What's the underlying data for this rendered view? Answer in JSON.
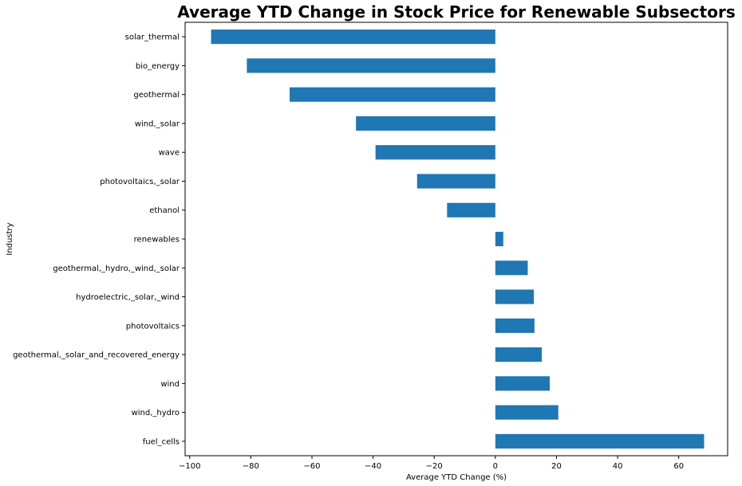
{
  "chart_data": {
    "type": "bar",
    "orientation": "horizontal",
    "title": "Average YTD Change in Stock Price for Renewable Subsectors",
    "xlabel": "Average YTD Change (%)",
    "ylabel": "Industry",
    "xlim": [
      -101.5,
      76
    ],
    "x_ticks": [
      -100,
      -80,
      -60,
      -40,
      -20,
      0,
      20,
      40,
      60
    ],
    "grid": false,
    "legend": "none",
    "bar_color": "#1f77b4",
    "categories": [
      "solar_thermal",
      "bio_energy",
      "geothermal",
      "wind,_solar",
      "wave",
      "photovoltaics,_solar",
      "ethanol",
      "renewables",
      "geothermal,_hydro,_wind,_solar",
      "hydroelectric,_solar,_wind",
      "photovoltaics",
      "geothermal,_solar_and_recovered_energy",
      "wind",
      "wind,_hydro",
      "fuel_cells"
    ],
    "values": [
      -93,
      -81.3,
      -67.3,
      -45.6,
      -39.2,
      -25.6,
      -15.8,
      2.6,
      10.6,
      12.6,
      12.8,
      15.2,
      17.8,
      20.6,
      68.3
    ]
  }
}
